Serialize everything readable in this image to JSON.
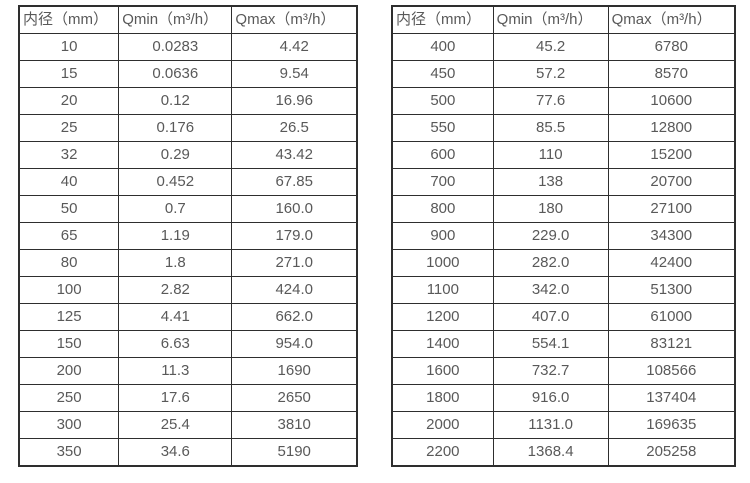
{
  "page": {
    "background": "#ffffff",
    "border_color": "#2e2e2e",
    "text_color": "#595959"
  },
  "tables": [
    {
      "name": "small-diameters",
      "headers": [
        "内径（mm）",
        "Qmin（m³/h）",
        "Qmax（m³/h）"
      ],
      "rows": [
        [
          "10",
          "0.0283",
          "4.42"
        ],
        [
          "15",
          "0.0636",
          "9.54"
        ],
        [
          "20",
          "0.12",
          "16.96"
        ],
        [
          "25",
          "0.176",
          "26.5"
        ],
        [
          "32",
          "0.29",
          "43.42"
        ],
        [
          "40",
          "0.452",
          "67.85"
        ],
        [
          "50",
          "0.7",
          "160.0"
        ],
        [
          "65",
          "1.19",
          "179.0"
        ],
        [
          "80",
          "1.8",
          "271.0"
        ],
        [
          "100",
          "2.82",
          "424.0"
        ],
        [
          "125",
          "4.41",
          "662.0"
        ],
        [
          "150",
          "6.63",
          "954.0"
        ],
        [
          "200",
          "11.3",
          "1690"
        ],
        [
          "250",
          "17.6",
          "2650"
        ],
        [
          "300",
          "25.4",
          "3810"
        ],
        [
          "350",
          "34.6",
          "5190"
        ]
      ]
    },
    {
      "name": "large-diameters",
      "headers": [
        "内径（mm）",
        "Qmin（m³/h）",
        "Qmax（m³/h）"
      ],
      "rows": [
        [
          "400",
          "45.2",
          "6780"
        ],
        [
          "450",
          "57.2",
          "8570"
        ],
        [
          "500",
          "77.6",
          "10600"
        ],
        [
          "550",
          "85.5",
          "12800"
        ],
        [
          "600",
          "110",
          "15200"
        ],
        [
          "700",
          "138",
          "20700"
        ],
        [
          "800",
          "180",
          "27100"
        ],
        [
          "900",
          "229.0",
          "34300"
        ],
        [
          "1000",
          "282.0",
          "42400"
        ],
        [
          "1100",
          "342.0",
          "51300"
        ],
        [
          "1200",
          "407.0",
          "61000"
        ],
        [
          "1400",
          "554.1",
          "83121"
        ],
        [
          "1600",
          "732.7",
          "108566"
        ],
        [
          "1800",
          "916.0",
          "137404"
        ],
        [
          "2000",
          "1131.0",
          "169635"
        ],
        [
          "2200",
          "1368.4",
          "205258"
        ]
      ]
    }
  ]
}
